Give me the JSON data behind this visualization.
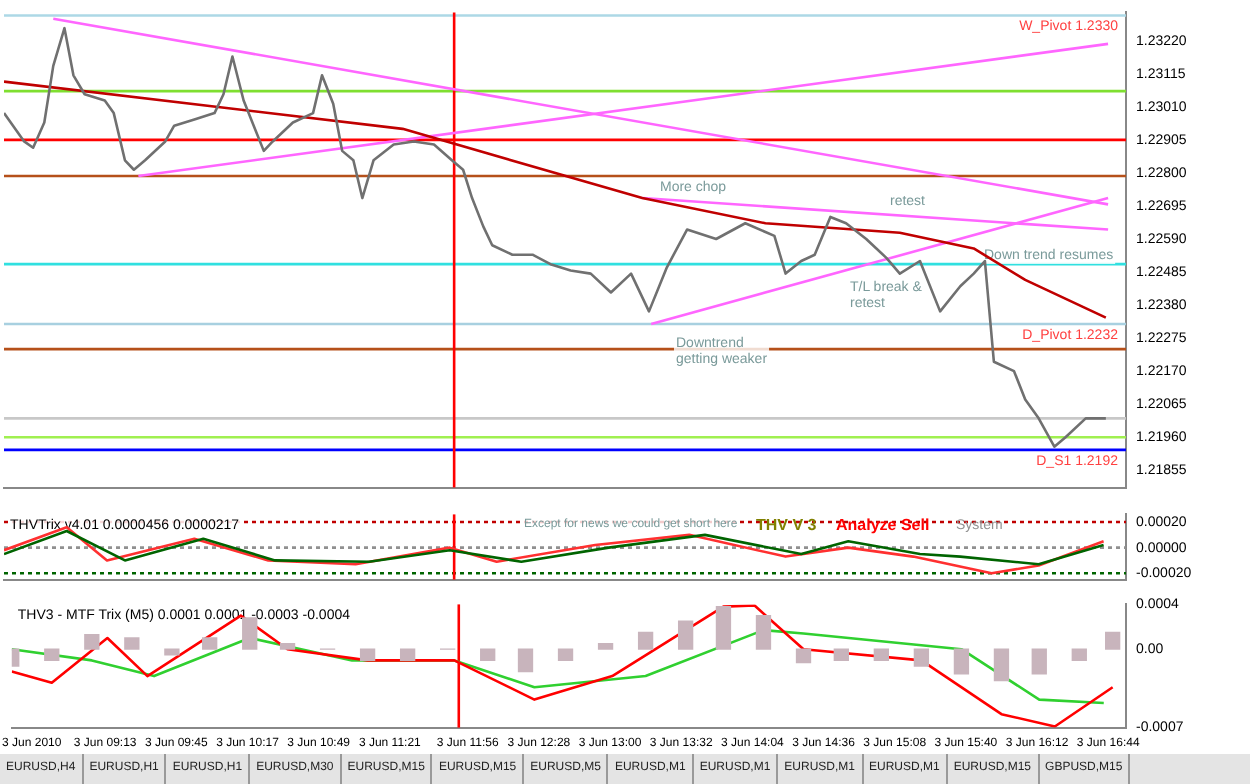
{
  "chart_data": [
    {
      "type": "line",
      "tick_labels": "y",
      "grid": false,
      "legend": false,
      "xlim": [
        "2010-06-03T08:31",
        "2010-06-03T16:52"
      ],
      "ylim": [
        1.218,
        1.2331
      ],
      "yticks": [
        {
          "value": 1.21855,
          "label": "1.21855"
        },
        {
          "value": 1.2196,
          "label": "1.21960"
        },
        {
          "value": 1.22065,
          "label": "1.22065"
        },
        {
          "value": 1.2217,
          "label": "1.22170"
        },
        {
          "value": 1.22275,
          "label": "1.22275"
        },
        {
          "value": 1.2238,
          "label": "1.22380"
        },
        {
          "value": 1.22485,
          "label": "1.22485"
        },
        {
          "value": 1.2259,
          "label": "1.22590"
        },
        {
          "value": 1.22695,
          "label": "1.22695"
        },
        {
          "value": 1.228,
          "label": "1.22800"
        },
        {
          "value": 1.22905,
          "label": "1.22905"
        },
        {
          "value": 1.2301,
          "label": "1.23010"
        },
        {
          "value": 1.23115,
          "label": "1.23115"
        },
        {
          "value": 1.2322,
          "label": "1.23220"
        }
      ],
      "series": [
        {
          "color": "#707070",
          "x": [
            "2010-06-03T08:31",
            "2010-06-03T08:40",
            "2010-06-03T08:44",
            "2010-06-03T08:49",
            "2010-06-03T08:53",
            "2010-06-03T08:58",
            "2010-06-03T09:02",
            "2010-06-03T09:07",
            "2010-06-03T09:16",
            "2010-06-03T09:20",
            "2010-06-03T09:25",
            "2010-06-03T09:29",
            "2010-06-03T09:34",
            "2010-06-03T09:43",
            "2010-06-03T09:47",
            "2010-06-03T09:56",
            "2010-06-03T10:05",
            "2010-06-03T10:09",
            "2010-06-03T10:13",
            "2010-06-03T10:18",
            "2010-06-03T10:27",
            "2010-06-03T10:31",
            "2010-06-03T10:40",
            "2010-06-03T10:49",
            "2010-06-03T10:53",
            "2010-06-03T10:58",
            "2010-06-03T11:02",
            "2010-06-03T11:07",
            "2010-06-03T11:11",
            "2010-06-03T11:16",
            "2010-06-03T11:25",
            "2010-06-03T11:34",
            "2010-06-03T11:43",
            "2010-06-03T11:51",
            "2010-06-03T11:56",
            "2010-06-03T12:00",
            "2010-06-03T12:05",
            "2010-06-03T12:09",
            "2010-06-03T12:18",
            "2010-06-03T12:27",
            "2010-06-03T12:35",
            "2010-06-03T12:44",
            "2010-06-03T12:53",
            "2010-06-03T13:02",
            "2010-06-03T13:11",
            "2010-06-03T13:19",
            "2010-06-03T13:27",
            "2010-06-03T13:36",
            "2010-06-03T13:49",
            "2010-06-03T14:02",
            "2010-06-03T14:15",
            "2010-06-03T14:20",
            "2010-06-03T14:27",
            "2010-06-03T14:33",
            "2010-06-03T14:40",
            "2010-06-03T14:47",
            "2010-06-03T14:56",
            "2010-06-03T15:05",
            "2010-06-03T15:11",
            "2010-06-03T15:20",
            "2010-06-03T15:29",
            "2010-06-03T15:38",
            "2010-06-03T15:44",
            "2010-06-03T15:49",
            "2010-06-03T15:53",
            "2010-06-03T16:02",
            "2010-06-03T16:07",
            "2010-06-03T16:13",
            "2010-06-03T16:20",
            "2010-06-03T16:25",
            "2010-06-03T16:34",
            "2010-06-03T16:43"
          ],
          "values": [
            1.2299,
            1.229,
            1.2288,
            1.2296,
            1.2314,
            1.2326,
            1.2311,
            1.2305,
            1.2303,
            1.2299,
            1.2284,
            1.2281,
            1.2284,
            1.229,
            1.2295,
            1.2297,
            1.2299,
            1.2305,
            1.2317,
            1.2303,
            1.2287,
            1.229,
            1.2296,
            1.2299,
            1.2311,
            1.2302,
            1.2287,
            1.2284,
            1.2272,
            1.2284,
            1.2289,
            1.229,
            1.2289,
            1.2284,
            1.2281,
            1.2272,
            1.2263,
            1.2257,
            1.2254,
            1.2254,
            1.2251,
            1.2249,
            1.2248,
            1.2242,
            1.2248,
            1.2236,
            1.225,
            1.2262,
            1.2259,
            1.2264,
            1.226,
            1.2248,
            1.2252,
            1.2254,
            1.2266,
            1.2264,
            1.2259,
            1.2253,
            1.2248,
            1.2252,
            1.2236,
            1.2244,
            1.2248,
            1.2252,
            1.222,
            1.2217,
            1.2208,
            1.2202,
            1.2193,
            1.2196,
            1.2202,
            1.2202
          ]
        },
        {
          "color": "#c00000",
          "x": [
            "2010-06-03T08:31",
            "2010-06-03T11:29",
            "2010-06-03T13:16",
            "2010-06-03T14:11",
            "2010-06-03T15:11",
            "2010-06-03T15:44",
            "2010-06-03T16:07",
            "2010-06-03T16:43"
          ],
          "values": [
            1.2309,
            1.2294,
            1.2272,
            1.2264,
            1.2261,
            1.2256,
            1.2246,
            1.2234
          ]
        },
        {
          "color": "#ff66ff",
          "x": [
            "2010-06-03T08:53",
            "2010-06-03T16:44"
          ],
          "values": [
            1.2329,
            1.227
          ]
        },
        {
          "color": "#ff66ff",
          "x": [
            "2010-06-03T09:31",
            "2010-06-03T16:44"
          ],
          "values": [
            1.2279,
            1.2321
          ]
        },
        {
          "color": "#ff66ff",
          "x": [
            "2010-06-03T13:16",
            "2010-06-03T16:44"
          ],
          "values": [
            1.2272,
            1.2262
          ]
        },
        {
          "color": "#ff66ff",
          "x": [
            "2010-06-03T13:20",
            "2010-06-03T16:44"
          ],
          "values": [
            1.2232,
            1.2272
          ]
        }
      ],
      "ref_lines": [
        {
          "axis": "y",
          "value": 1.233,
          "label": "W_Pivot 1.2330",
          "color": "#add8e6"
        },
        {
          "axis": "y",
          "value": 1.2306,
          "color": "#7fdf30"
        },
        {
          "axis": "y",
          "value": 1.22905,
          "color": "#ff0000"
        },
        {
          "axis": "y",
          "value": 1.2279,
          "color": "#b5501a"
        },
        {
          "axis": "y",
          "value": 1.2251,
          "color": "#30e0e0"
        },
        {
          "axis": "y",
          "value": 1.2232,
          "label": "D_Pivot 1.2232",
          "color": "#a8d0e0"
        },
        {
          "axis": "y",
          "value": 1.2224,
          "color": "#b5501a"
        },
        {
          "axis": "y",
          "value": 1.2202,
          "color": "#c8c8c8"
        },
        {
          "axis": "y",
          "value": 1.2196,
          "color": "#a0f050"
        },
        {
          "axis": "y",
          "value": 1.2192,
          "label": "D_S1 1.2192",
          "color": "#0000ff"
        },
        {
          "axis": "x",
          "value": "2010-06-03T11:52",
          "color": "#ff0000"
        }
      ],
      "annotations": [
        "More chop",
        "retest",
        "Down trend resumes",
        "T/L break & retest",
        "Downtrend getting weaker"
      ]
    },
    {
      "type": "line",
      "title": "THVTrix v4.01 0.0000456 0.0000217",
      "tick_labels": "y",
      "grid": false,
      "legend": false,
      "xlim": [
        "2010-06-03T08:31",
        "2010-06-03T16:52"
      ],
      "ylim": [
        -0.00025,
        0.00026
      ],
      "yticks": [
        {
          "value": 0.0002,
          "label": "0.00020"
        },
        {
          "value": 0,
          "label": "0.00000"
        },
        {
          "value": -0.0002,
          "label": "-0.00020"
        }
      ],
      "series": [
        {
          "color": "#006400",
          "x": [
            "2010-06-03T08:31",
            "2010-06-03T08:59",
            "2010-06-03T09:25",
            "2010-06-03T10:00",
            "2010-06-03T10:32",
            "2010-06-03T11:14",
            "2010-06-03T11:50",
            "2010-06-03T12:22",
            "2010-06-03T13:01",
            "2010-06-03T13:44",
            "2010-06-03T14:27",
            "2010-06-03T14:48",
            "2010-06-03T15:20",
            "2010-06-03T15:38",
            "2010-06-03T16:13",
            "2010-06-03T16:42"
          ],
          "values": [
            -5e-05,
            0.00013,
            -0.0001,
            7e-05,
            -0.0001,
            -0.00011,
            -2e-05,
            -0.00011,
            0,
            0.0001,
            -5e-05,
            5e-05,
            -5e-05,
            -7e-05,
            -0.00013,
            2e-05
          ]
        },
        {
          "color": "#ff3030",
          "x": [
            "2010-06-03T08:31",
            "2010-06-03T08:59",
            "2010-06-03T09:17",
            "2010-06-03T09:56",
            "2010-06-03T10:29",
            "2010-06-03T11:08",
            "2010-06-03T11:50",
            "2010-06-03T12:11",
            "2010-06-03T12:55",
            "2010-06-03T13:37",
            "2010-06-03T14:20",
            "2010-06-03T14:48",
            "2010-06-03T15:17",
            "2010-06-03T15:52",
            "2010-06-03T16:13",
            "2010-06-03T16:42"
          ],
          "values": [
            -2e-05,
            0.00016,
            -0.0001,
            7e-05,
            -0.0001,
            -0.00013,
            0,
            -0.00011,
            2e-05,
            0.0001,
            -7e-05,
            0,
            -7e-05,
            -0.0002,
            -0.00014,
            5e-05
          ]
        }
      ],
      "ref_lines": [
        {
          "axis": "y",
          "value": 0.0002,
          "color": "#c00000",
          "line_style": "dotted"
        },
        {
          "axis": "y",
          "value": 0,
          "color": "#909090",
          "line_style": "dotted"
        },
        {
          "axis": "y",
          "value": -0.0002,
          "color": "#006400",
          "line_style": "dotted"
        },
        {
          "axis": "x",
          "value": "2010-06-03T11:52",
          "color": "#ff0000"
        }
      ],
      "annotations": [
        "Except for news we could get short here",
        "THV V 3",
        "System",
        "Analyze Sell"
      ]
    },
    {
      "type": "line",
      "title": "THV3 - MTF Trix (M5) 0.0001 0.0001 -0.0003 -0.0004",
      "grid": false,
      "legend": false,
      "xlim": [
        "2010-06-03T08:31",
        "2010-06-03T16:52"
      ],
      "ylim": [
        -0.0007,
        0.0004
      ],
      "yticks": [
        {
          "value": 0.0004,
          "label": "0.0004"
        },
        {
          "value": 0,
          "label": "0.00"
        },
        {
          "value": -0.0007,
          "label": "-0.0007"
        }
      ],
      "xticks": [
        {
          "value": "2010-06-03T08:40",
          "label": "3 Jun 2010"
        },
        {
          "value": "2010-06-03T09:13",
          "label": "3 Jun 09:13"
        },
        {
          "value": "2010-06-03T09:45",
          "label": "3 Jun 09:45"
        },
        {
          "value": "2010-06-03T10:17",
          "label": "3 Jun 10:17"
        },
        {
          "value": "2010-06-03T10:49",
          "label": "3 Jun 10:49"
        },
        {
          "value": "2010-06-03T11:21",
          "label": "3 Jun 11:21"
        },
        {
          "value": "2010-06-03T11:56",
          "label": "3 Jun 11:56"
        },
        {
          "value": "2010-06-03T12:28",
          "label": "3 Jun 12:28"
        },
        {
          "value": "2010-06-03T13:00",
          "label": "3 Jun 13:00"
        },
        {
          "value": "2010-06-03T13:32",
          "label": "3 Jun 13:32"
        },
        {
          "value": "2010-06-03T14:04",
          "label": "3 Jun 14:04"
        },
        {
          "value": "2010-06-03T14:36",
          "label": "3 Jun 14:36"
        },
        {
          "value": "2010-06-03T15:08",
          "label": "3 Jun 15:08"
        },
        {
          "value": "2010-06-03T15:40",
          "label": "3 Jun 15:40"
        },
        {
          "value": "2010-06-03T16:12",
          "label": "3 Jun 16:12"
        },
        {
          "value": "2010-06-03T16:44",
          "label": "3 Jun 16:44"
        }
      ],
      "series": [
        {
          "type": "bar",
          "color": "#c8b4bc",
          "x": [
            "2010-06-03T08:31",
            "2010-06-03T08:49",
            "2010-06-03T09:07",
            "2010-06-03T09:25",
            "2010-06-03T09:43",
            "2010-06-03T10:00",
            "2010-06-03T10:18",
            "2010-06-03T10:35",
            "2010-06-03T10:53",
            "2010-06-03T11:11",
            "2010-06-03T11:29",
            "2010-06-03T11:47",
            "2010-06-03T12:05",
            "2010-06-03T12:22",
            "2010-06-03T12:40",
            "2010-06-03T12:58",
            "2010-06-03T13:16",
            "2010-06-03T13:34",
            "2010-06-03T13:51",
            "2010-06-03T14:09",
            "2010-06-03T14:27",
            "2010-06-03T14:44",
            "2010-06-03T15:02",
            "2010-06-03T15:20",
            "2010-06-03T15:38",
            "2010-06-03T15:56",
            "2010-06-03T16:13",
            "2010-06-03T16:31",
            "2010-06-03T16:46"
          ],
          "values": [
            -0.00015,
            -0.0001,
            0.00013,
            0.0001,
            -5e-05,
            0.0001,
            0.00028,
            5e-05,
            0,
            -0.0001,
            -0.0001,
            0,
            -0.0001,
            -0.0002,
            -0.0001,
            5e-05,
            0.00015,
            0.00025,
            0.00038,
            0.0003,
            -0.00012,
            -0.0001,
            -0.0001,
            -0.00015,
            -0.00022,
            -0.00028,
            -0.00022,
            -0.0001,
            0.00015
          ]
        },
        {
          "color": "#ff0000",
          "x": [
            "2010-06-03T08:31",
            "2010-06-03T08:49",
            "2010-06-03T09:14",
            "2010-06-03T09:32",
            "2010-06-03T10:14",
            "2010-06-03T10:35",
            "2010-06-03T11:11",
            "2010-06-03T11:50",
            "2010-06-03T12:26",
            "2010-06-03T13:01",
            "2010-06-03T13:51",
            "2010-06-03T14:05",
            "2010-06-03T14:27",
            "2010-06-03T15:20",
            "2010-06-03T15:56",
            "2010-06-03T16:20",
            "2010-06-03T16:46"
          ],
          "values": [
            -0.0002,
            -0.0003,
            0.0001,
            -0.00024,
            0.0003,
            0,
            -0.0001,
            -0.0001,
            -0.00045,
            -0.00024,
            0.00038,
            0.00039,
            0,
            -0.0001,
            -0.00058,
            -0.00069,
            -0.00034
          ]
        },
        {
          "color": "#30d030",
          "x": [
            "2010-06-03T08:31",
            "2010-06-03T09:07",
            "2010-06-03T09:35",
            "2010-06-03T10:18",
            "2010-06-03T11:04",
            "2010-06-03T11:50",
            "2010-06-03T12:26",
            "2010-06-03T13:16",
            "2010-06-03T14:09",
            "2010-06-03T14:27",
            "2010-06-03T15:38",
            "2010-06-03T16:13",
            "2010-06-03T16:42"
          ],
          "values": [
            0,
            -0.0001,
            -0.00024,
            0.0001,
            -0.0001,
            -0.0001,
            -0.00034,
            -0.00024,
            0.00017,
            0.00014,
            0,
            -0.00045,
            -0.00048
          ]
        }
      ],
      "ref_lines": [
        {
          "axis": "x",
          "value": "2010-06-03T11:52",
          "color": "#ff0000"
        }
      ],
      "annotations": [
        "EURUSD,H4",
        "EURUSD,H1",
        "EURUSD,H1",
        "EURUSD,M30",
        "EURUSD,M15",
        "EURUSD,M15",
        "EURUSD,M5",
        "EURUSD,M1",
        "EURUSD,M1",
        "EURUSD,M1",
        "EURUSD,M1",
        "EURUSD,M15",
        "GBPUSD,M15"
      ]
    }
  ]
}
